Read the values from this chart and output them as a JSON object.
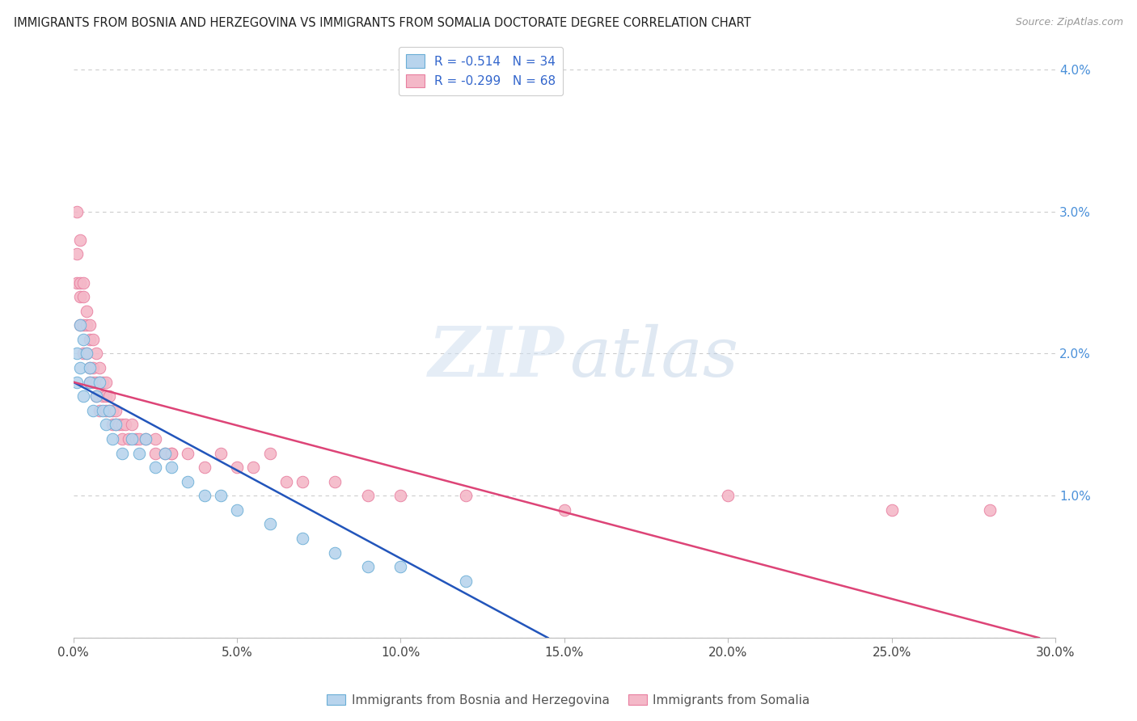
{
  "title": "IMMIGRANTS FROM BOSNIA AND HERZEGOVINA VS IMMIGRANTS FROM SOMALIA DOCTORATE DEGREE CORRELATION CHART",
  "source": "Source: ZipAtlas.com",
  "series": [
    {
      "label": "Immigrants from Bosnia and Herzegovina",
      "color": "#b8d4ed",
      "edge_color": "#6aaed6",
      "R": -0.514,
      "N": 34,
      "legend_color": "#b8d4ed",
      "line_color": "#2255bb",
      "x": [
        0.001,
        0.001,
        0.002,
        0.002,
        0.003,
        0.003,
        0.004,
        0.005,
        0.005,
        0.006,
        0.007,
        0.008,
        0.009,
        0.01,
        0.011,
        0.012,
        0.013,
        0.015,
        0.018,
        0.02,
        0.022,
        0.025,
        0.028,
        0.03,
        0.035,
        0.04,
        0.045,
        0.05,
        0.06,
        0.07,
        0.08,
        0.09,
        0.1,
        0.12
      ],
      "y": [
        0.02,
        0.018,
        0.022,
        0.019,
        0.021,
        0.017,
        0.02,
        0.018,
        0.019,
        0.016,
        0.017,
        0.018,
        0.016,
        0.015,
        0.016,
        0.014,
        0.015,
        0.013,
        0.014,
        0.013,
        0.014,
        0.012,
        0.013,
        0.012,
        0.011,
        0.01,
        0.01,
        0.009,
        0.008,
        0.007,
        0.006,
        0.005,
        0.005,
        0.004
      ]
    },
    {
      "label": "Immigrants from Somalia",
      "color": "#f4b8c8",
      "edge_color": "#e87fa0",
      "R": -0.299,
      "N": 68,
      "legend_color": "#f4b8c8",
      "line_color": "#dd4477",
      "x": [
        0.001,
        0.001,
        0.001,
        0.002,
        0.002,
        0.002,
        0.002,
        0.003,
        0.003,
        0.003,
        0.003,
        0.004,
        0.004,
        0.004,
        0.005,
        0.005,
        0.005,
        0.005,
        0.006,
        0.006,
        0.006,
        0.007,
        0.007,
        0.007,
        0.008,
        0.008,
        0.008,
        0.009,
        0.009,
        0.01,
        0.01,
        0.01,
        0.011,
        0.011,
        0.012,
        0.012,
        0.013,
        0.013,
        0.014,
        0.015,
        0.015,
        0.016,
        0.017,
        0.018,
        0.019,
        0.02,
        0.022,
        0.025,
        0.028,
        0.03,
        0.025,
        0.03,
        0.035,
        0.04,
        0.045,
        0.05,
        0.055,
        0.06,
        0.065,
        0.07,
        0.08,
        0.09,
        0.1,
        0.12,
        0.15,
        0.2,
        0.25,
        0.28
      ],
      "y": [
        0.03,
        0.027,
        0.025,
        0.028,
        0.025,
        0.024,
        0.022,
        0.025,
        0.024,
        0.022,
        0.02,
        0.023,
        0.022,
        0.02,
        0.022,
        0.021,
        0.019,
        0.018,
        0.021,
        0.019,
        0.018,
        0.02,
        0.018,
        0.017,
        0.019,
        0.018,
        0.016,
        0.018,
        0.017,
        0.018,
        0.017,
        0.016,
        0.017,
        0.016,
        0.016,
        0.015,
        0.016,
        0.015,
        0.015,
        0.015,
        0.014,
        0.015,
        0.014,
        0.015,
        0.014,
        0.014,
        0.014,
        0.013,
        0.013,
        0.013,
        0.014,
        0.013,
        0.013,
        0.012,
        0.013,
        0.012,
        0.012,
        0.013,
        0.011,
        0.011,
        0.011,
        0.01,
        0.01,
        0.01,
        0.009,
        0.01,
        0.009,
        0.009
      ]
    }
  ],
  "xlim": [
    0.0,
    0.3
  ],
  "ylim": [
    0.0,
    0.042
  ],
  "xlabel": "",
  "ylabel": "Doctorate Degree",
  "xticks": [
    0.0,
    0.05,
    0.1,
    0.15,
    0.2,
    0.25,
    0.3
  ],
  "xtick_labels": [
    "0.0%",
    "5.0%",
    "10.0%",
    "15.0%",
    "20.0%",
    "25.0%",
    "30.0%"
  ],
  "yticks_right": [
    0.0,
    0.01,
    0.02,
    0.03,
    0.04
  ],
  "ytick_labels_right": [
    "",
    "1.0%",
    "2.0%",
    "3.0%",
    "4.0%"
  ],
  "grid_color": "#cccccc",
  "background_color": "#ffffff",
  "blue_line_x0": 0.0,
  "blue_line_y0": 0.018,
  "blue_line_x1": 0.145,
  "blue_line_y1": 0.0,
  "pink_line_x0": 0.0,
  "pink_line_y0": 0.018,
  "pink_line_x1": 0.295,
  "pink_line_y1": 0.0
}
